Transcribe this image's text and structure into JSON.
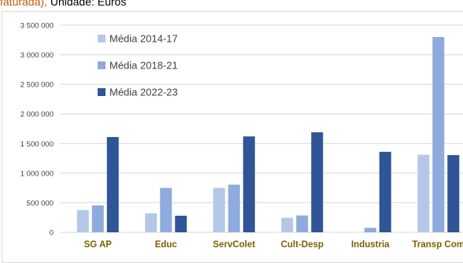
{
  "caption": {
    "lead": "faturada),",
    "rest": " Unidade: Euros"
  },
  "colors": {
    "series": [
      "#b4c7e7",
      "#8faadc",
      "#2f5597"
    ],
    "category_text": "#7f6000",
    "grid": "#d9d9d9"
  },
  "chart_data": {
    "type": "bar",
    "categories": [
      "SG AP",
      "Educ",
      "ServColet",
      "Cult-Desp",
      "Industria",
      "Transp Com"
    ],
    "series": [
      {
        "name": "Média 2014-17",
        "values": [
          375000,
          320000,
          750000,
          245000,
          0,
          1310000
        ]
      },
      {
        "name": "Média 2018-21",
        "values": [
          455000,
          750000,
          805000,
          285000,
          75000,
          3300000
        ]
      },
      {
        "name": "Média 2022-23",
        "values": [
          1610000,
          280000,
          1620000,
          1690000,
          1360000,
          1305000
        ]
      }
    ],
    "yticks": [
      "0",
      "500 000",
      "1 000 000",
      "1 500 000",
      "2 000 000",
      "2 500 000",
      "3 000 000",
      "3 500 000"
    ],
    "ylim": [
      0,
      3500000
    ],
    "grid": true,
    "legend_position": "top-left"
  }
}
